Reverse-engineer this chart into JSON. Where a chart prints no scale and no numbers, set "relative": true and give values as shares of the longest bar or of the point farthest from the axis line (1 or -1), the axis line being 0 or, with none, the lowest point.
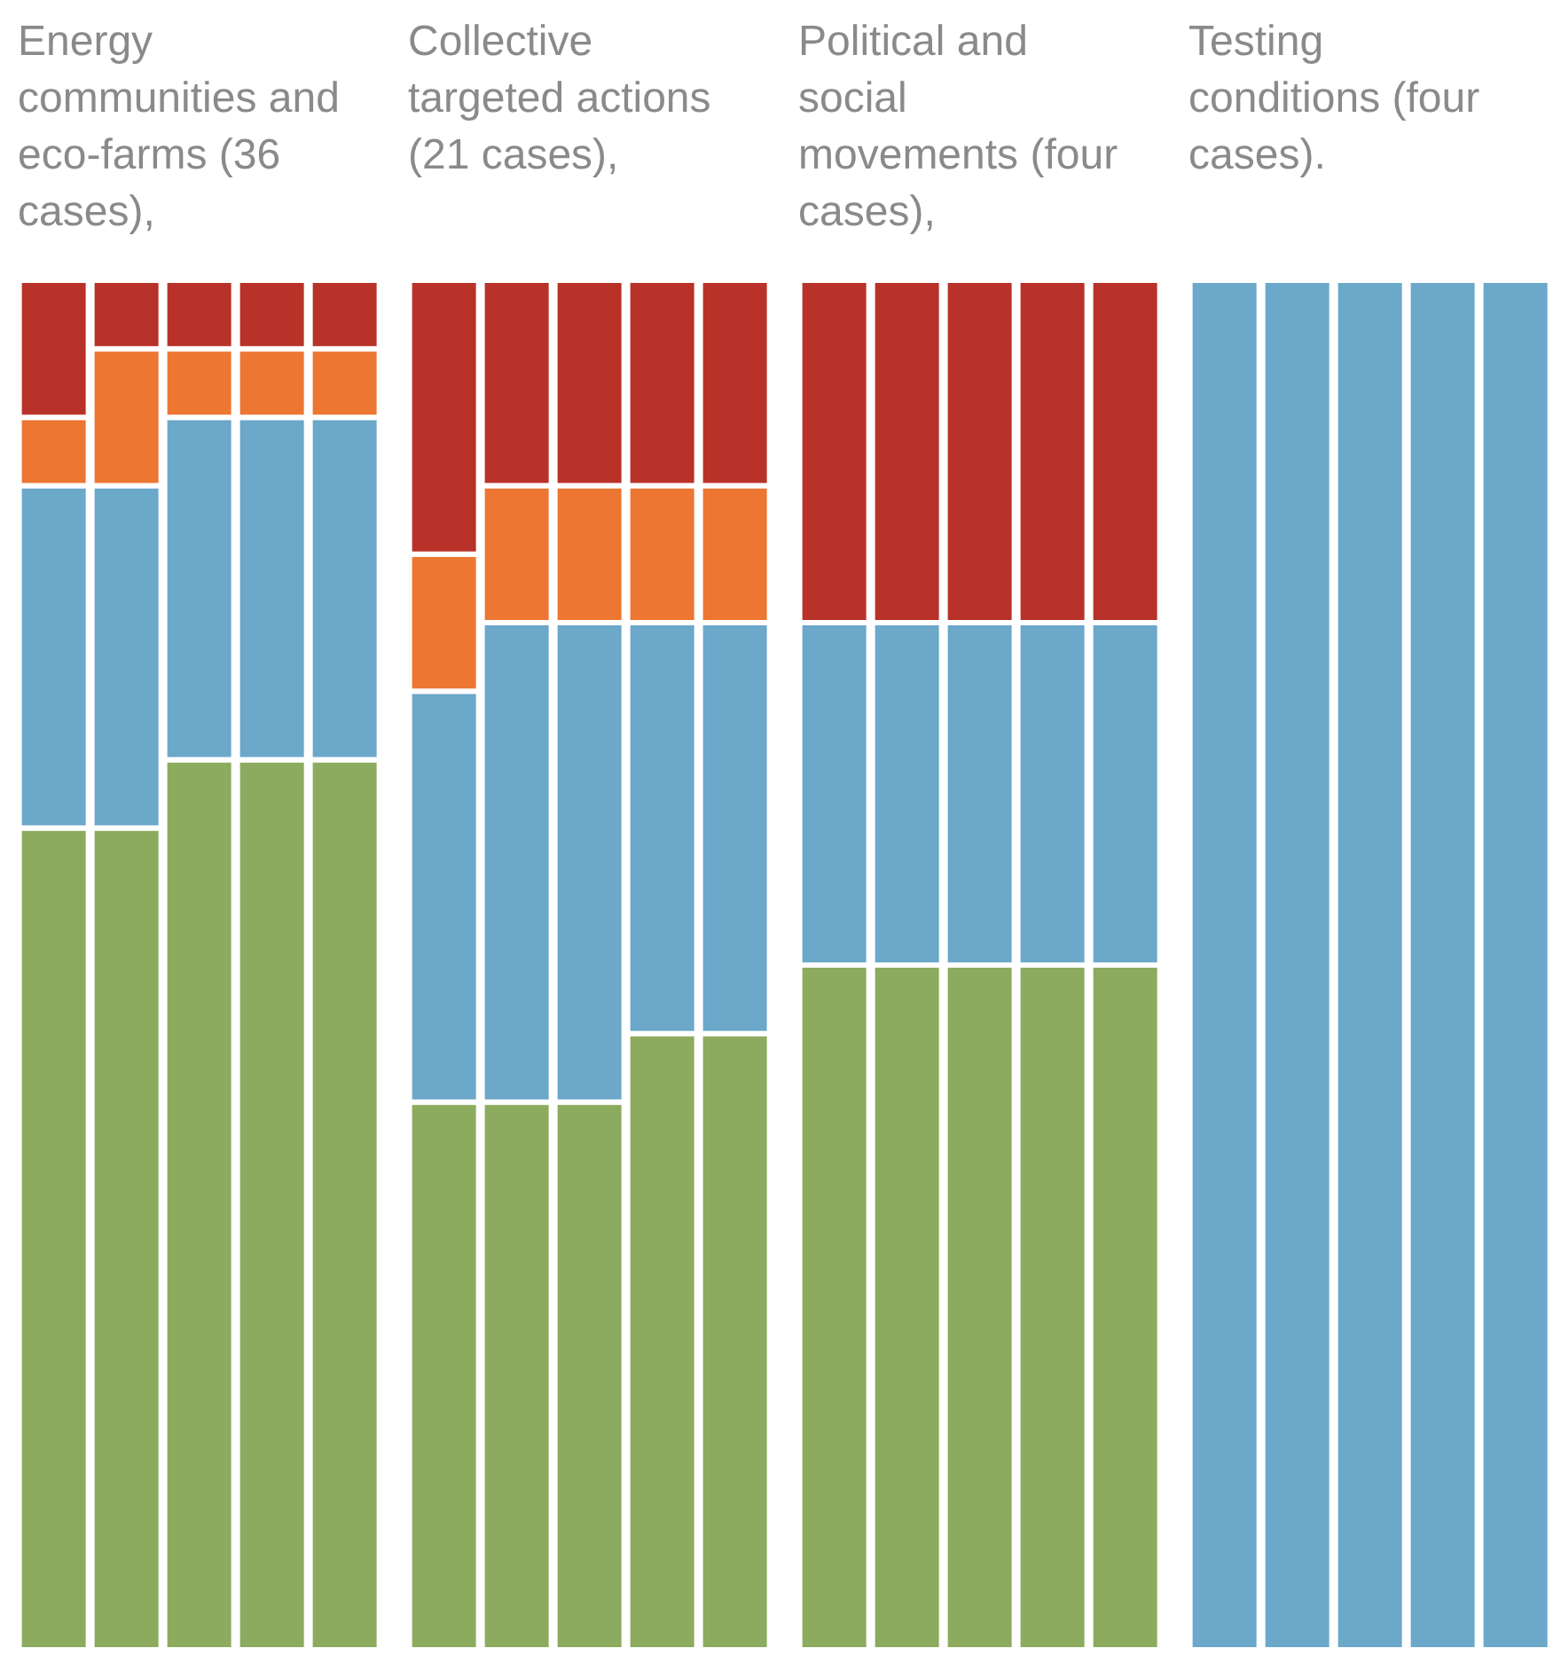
{
  "chart_data": [
    {
      "type": "bar",
      "title": "Energy communities and eco-farms (36 cases),",
      "stacked": true,
      "relative": true,
      "categories": [
        null,
        null,
        null,
        null,
        null
      ],
      "series": [
        {
          "color": "#8cab5e",
          "values": [
            0.6,
            0.6,
            0.65,
            0.65,
            0.65
          ]
        },
        {
          "color": "#6ba8c9",
          "values": [
            0.25,
            0.25,
            0.25,
            0.25,
            0.25
          ]
        },
        {
          "color": "#ec7632",
          "values": [
            0.05,
            0.1,
            0.05,
            0.05,
            0.05
          ]
        },
        {
          "color": "#b83229",
          "values": [
            0.1,
            0.05,
            0.05,
            0.05,
            0.05
          ]
        }
      ]
    },
    {
      "type": "bar",
      "title": "Collective targeted actions (21 cases),",
      "stacked": true,
      "relative": true,
      "categories": [
        null,
        null,
        null,
        null,
        null
      ],
      "series": [
        {
          "color": "#8cab5e",
          "values": [
            0.4,
            0.4,
            0.4,
            0.45,
            0.45
          ]
        },
        {
          "color": "#6ba8c9",
          "values": [
            0.3,
            0.35,
            0.35,
            0.3,
            0.3
          ]
        },
        {
          "color": "#ec7632",
          "values": [
            0.1,
            0.1,
            0.1,
            0.1,
            0.1
          ]
        },
        {
          "color": "#b83229",
          "values": [
            0.2,
            0.15,
            0.15,
            0.15,
            0.15
          ]
        }
      ]
    },
    {
      "type": "bar",
      "title": "Political and social movements (four cases),",
      "stacked": true,
      "relative": true,
      "categories": [
        null,
        null,
        null,
        null,
        null
      ],
      "series": [
        {
          "color": "#8cab5e",
          "values": [
            0.5,
            0.5,
            0.5,
            0.5,
            0.5
          ]
        },
        {
          "color": "#6ba8c9",
          "values": [
            0.25,
            0.25,
            0.25,
            0.25,
            0.25
          ]
        },
        {
          "color": "#b83229",
          "values": [
            0.25,
            0.25,
            0.25,
            0.25,
            0.25
          ]
        }
      ]
    },
    {
      "type": "bar",
      "title": "Testing conditions (four cases).",
      "stacked": true,
      "relative": true,
      "categories": [
        null,
        null,
        null,
        null,
        null
      ],
      "series": [
        {
          "color": "#6ba8c9",
          "values": [
            1,
            1,
            1,
            1,
            1
          ]
        }
      ]
    }
  ]
}
